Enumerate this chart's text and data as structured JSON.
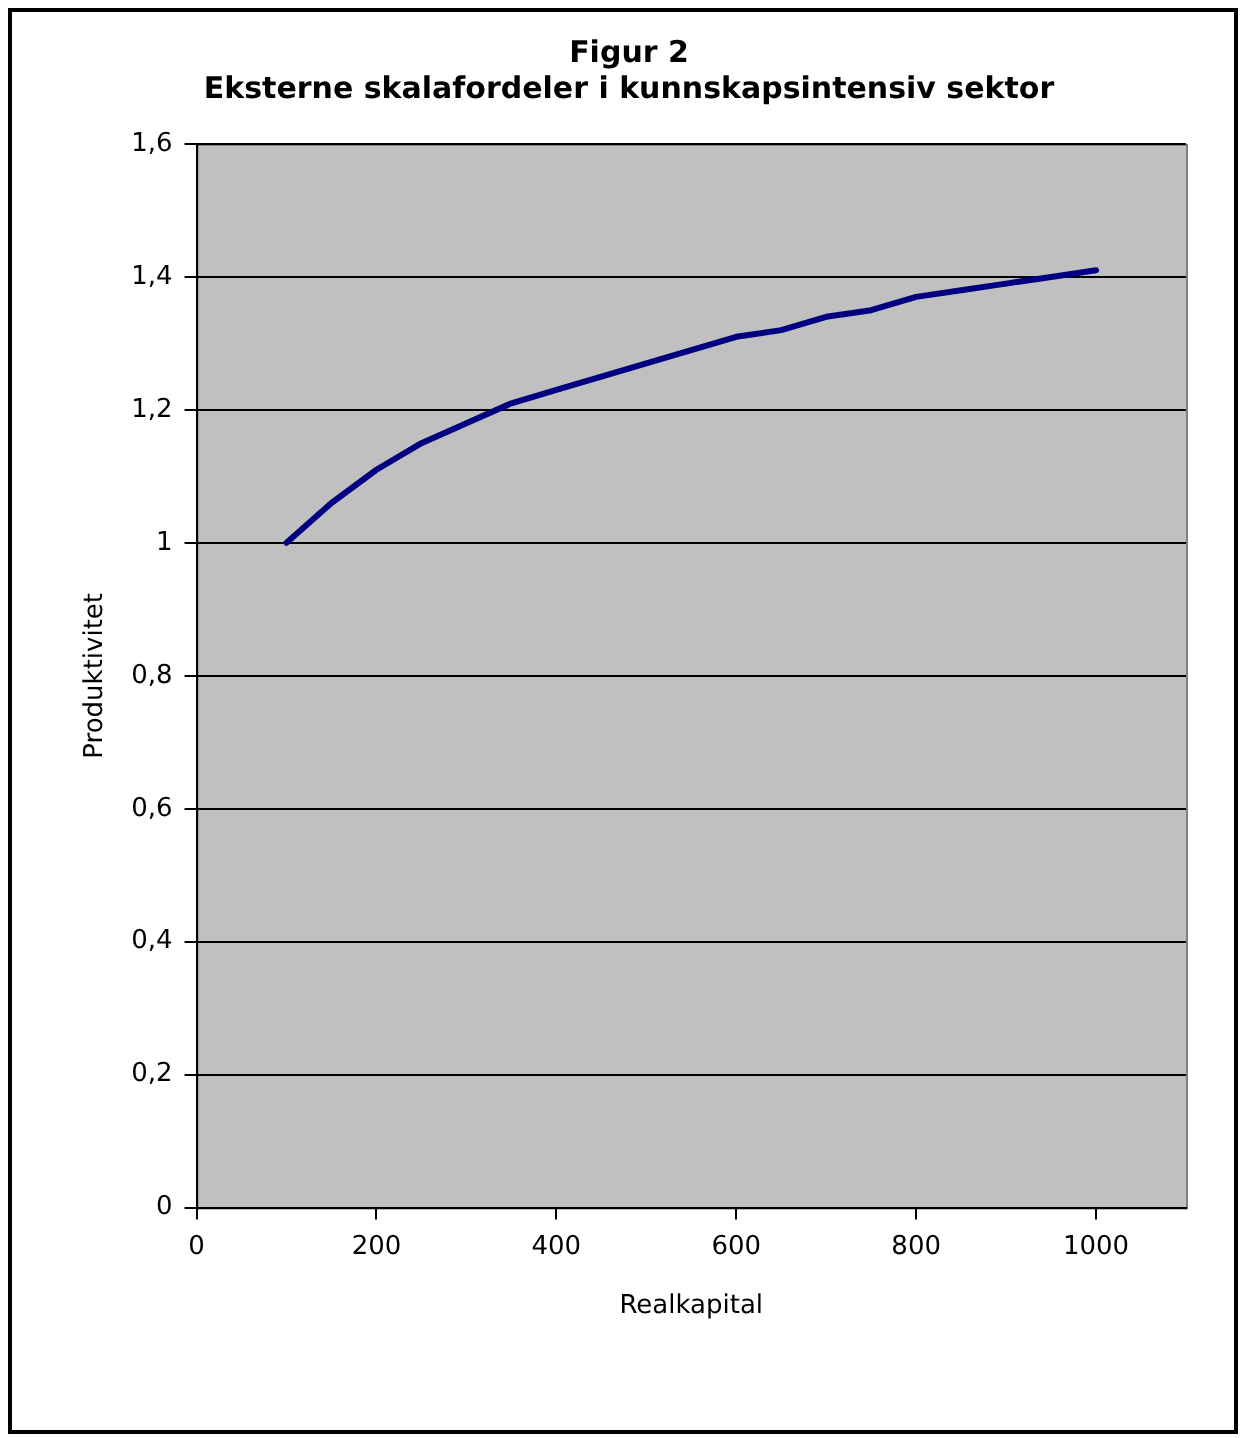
{
  "chart_data": {
    "type": "line",
    "title": [
      "Figur 2",
      "Eksterne skalafordeler i kunnskapsintensiv sektor"
    ],
    "xlabel": "Realkapital",
    "ylabel": "Produktivitet",
    "x": [
      100,
      150,
      200,
      250,
      300,
      350,
      400,
      450,
      500,
      550,
      600,
      650,
      700,
      750,
      800,
      850,
      900,
      950,
      1000
    ],
    "series": [
      {
        "color": "#000080",
        "values": [
          1.0,
          1.06,
          1.11,
          1.15,
          1.18,
          1.21,
          1.23,
          1.25,
          1.27,
          1.29,
          1.31,
          1.32,
          1.34,
          1.35,
          1.37,
          1.38,
          1.39,
          1.4,
          1.41
        ]
      }
    ],
    "xlim": [
      0,
      1100
    ],
    "xticks": [
      0,
      200,
      400,
      600,
      800,
      1000
    ],
    "ylim": [
      0,
      1.6
    ],
    "yticks": [
      0,
      {
        "value": 0.2,
        "label": "0,2"
      },
      {
        "value": 0.4,
        "label": "0,4"
      },
      {
        "value": 0.6,
        "label": "0,6"
      },
      {
        "value": 0.8,
        "label": "0,8"
      },
      1,
      {
        "value": 1.2,
        "label": "1,2"
      },
      {
        "value": 1.4,
        "label": "1,4"
      },
      {
        "value": 1.6,
        "label": "1,6"
      }
    ],
    "grid": "y",
    "legend": false,
    "marker": "none",
    "line_style": "solid"
  }
}
